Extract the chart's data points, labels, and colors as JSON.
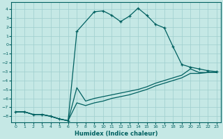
{
  "xlabel": "Humidex (Indice chaleur)",
  "xlim": [
    -0.5,
    23.5
  ],
  "ylim": [
    -8.7,
    4.8
  ],
  "xticks": [
    0,
    1,
    2,
    3,
    4,
    5,
    6,
    7,
    8,
    9,
    10,
    11,
    12,
    13,
    14,
    15,
    16,
    17,
    18,
    19,
    20,
    21,
    22,
    23
  ],
  "yticks": [
    4,
    3,
    2,
    1,
    0,
    -1,
    -2,
    -3,
    -4,
    -5,
    -6,
    -7,
    -8
  ],
  "background_color": "#c5e8e5",
  "grid_color": "#9ecece",
  "line_color": "#006060",
  "line1_x": [
    0,
    1,
    2,
    3,
    4,
    5,
    6,
    7,
    9,
    10,
    11,
    12,
    13,
    14,
    15,
    16,
    17,
    18,
    19,
    20,
    21,
    22,
    23
  ],
  "line1_y": [
    -7.5,
    -7.5,
    -7.8,
    -7.8,
    -8.0,
    -8.3,
    -8.5,
    1.5,
    3.7,
    3.8,
    3.3,
    2.6,
    3.2,
    4.1,
    3.3,
    2.3,
    1.9,
    -0.2,
    -2.2,
    -2.5,
    -2.7,
    -2.9,
    -3.0
  ],
  "line2_x": [
    0,
    1,
    2,
    3,
    4,
    5,
    6,
    7,
    8,
    9,
    10,
    11,
    12,
    13,
    14,
    15,
    16,
    17,
    18,
    19,
    20,
    21,
    22,
    23
  ],
  "line2_y": [
    -7.5,
    -7.5,
    -7.8,
    -7.8,
    -8.0,
    -8.3,
    -8.5,
    -4.8,
    -6.3,
    -6.0,
    -5.8,
    -5.6,
    -5.4,
    -5.2,
    -5.0,
    -4.7,
    -4.3,
    -4.0,
    -3.7,
    -3.4,
    -2.7,
    -3.1,
    -3.1,
    -3.1
  ],
  "line3_x": [
    0,
    1,
    2,
    3,
    4,
    5,
    6,
    7,
    8,
    9,
    10,
    11,
    12,
    13,
    14,
    15,
    16,
    17,
    18,
    19,
    20,
    21,
    22,
    23
  ],
  "line3_y": [
    -7.5,
    -7.5,
    -7.8,
    -7.8,
    -8.0,
    -8.3,
    -8.5,
    -6.5,
    -6.8,
    -6.5,
    -6.3,
    -6.0,
    -5.8,
    -5.6,
    -5.3,
    -5.0,
    -4.6,
    -4.3,
    -4.0,
    -3.7,
    -3.2,
    -3.2,
    -3.1,
    -3.1
  ]
}
